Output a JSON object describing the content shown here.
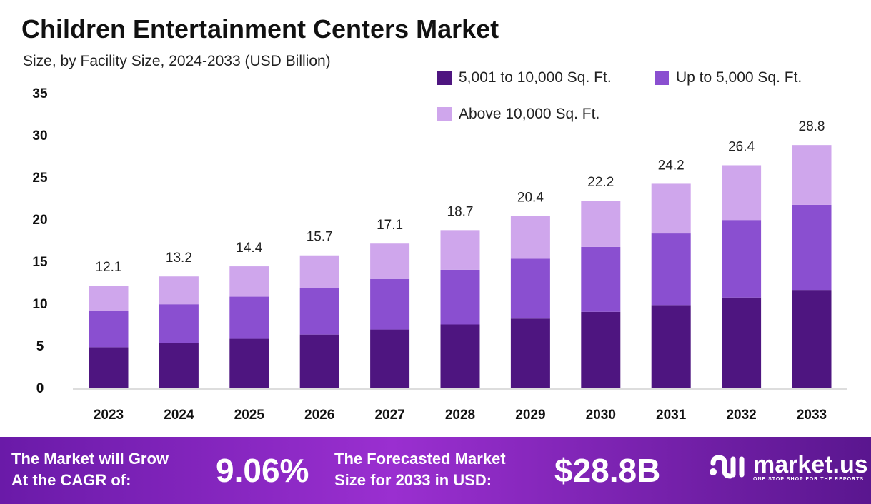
{
  "chart_data": {
    "type": "bar",
    "stacked": true,
    "title": "Children Entertainment Centers Market",
    "subtitle": "Size, by Facility Size, 2024-2033 (USD Billion)",
    "categories": [
      "2023",
      "2024",
      "2025",
      "2026",
      "2027",
      "2028",
      "2029",
      "2030",
      "2031",
      "2032",
      "2033"
    ],
    "series": [
      {
        "name": "5,001 to 10,000 Sq. Ft.",
        "color": "#4e1580",
        "values": [
          4.8,
          5.3,
          5.8,
          6.3,
          6.9,
          7.5,
          8.2,
          9.0,
          9.8,
          10.7,
          11.6
        ]
      },
      {
        "name": "Up to 5,000 Sq. Ft.",
        "color": "#8a4fd0",
        "values": [
          4.3,
          4.6,
          5.0,
          5.5,
          6.0,
          6.5,
          7.1,
          7.7,
          8.5,
          9.2,
          10.1
        ]
      },
      {
        "name": "Above 10,000 Sq. Ft.",
        "color": "#cfa6ec",
        "values": [
          3.0,
          3.3,
          3.6,
          3.9,
          4.2,
          4.7,
          5.1,
          5.5,
          5.9,
          6.5,
          7.1
        ]
      }
    ],
    "totals": [
      "12.1",
      "13.2",
      "14.4",
      "15.7",
      "17.1",
      "18.7",
      "20.4",
      "22.2",
      "24.2",
      "26.4",
      "28.8"
    ],
    "yticks": [
      "0",
      "5",
      "10",
      "15",
      "20",
      "25",
      "30",
      "35"
    ],
    "ylim": [
      0,
      35
    ],
    "grid": false,
    "legend_position": "top-right"
  },
  "footer": {
    "cagr_label_1": "The Market will Grow",
    "cagr_label_2": "At the CAGR of:",
    "cagr_value": "9.06%",
    "forecast_label_1": "The Forecasted Market",
    "forecast_label_2": "Size for 2033 in USD:",
    "forecast_value": "$28.8B",
    "logo_name": "market.us",
    "logo_tagline": "ONE STOP SHOP FOR THE REPORTS"
  }
}
